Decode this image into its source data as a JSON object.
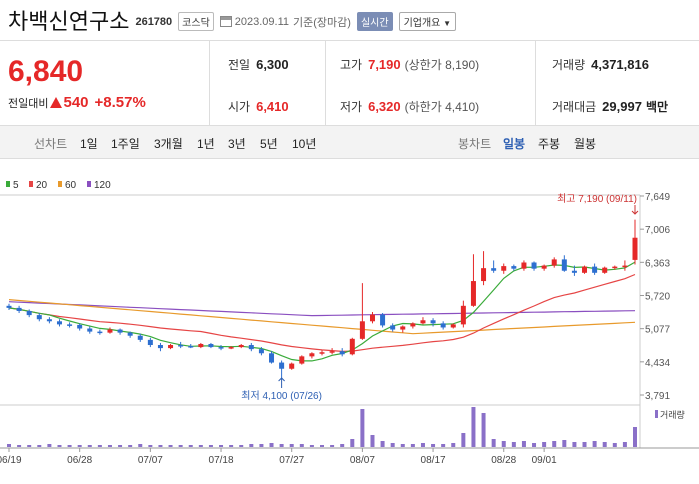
{
  "header": {
    "name": "차백신연구소",
    "code": "261780",
    "market": "코스닥",
    "date": "2023.09.11",
    "basis": "기준(장마감)",
    "realtime": "실시간",
    "company_info": "기업개요"
  },
  "quote": {
    "price": "6,840",
    "change_label": "전일대비",
    "change": "540",
    "change_pct": "+8.57%",
    "prev_label": "전일",
    "prev": "6,300",
    "high_label": "고가",
    "high": "7,190",
    "upper_limit": "(상한가 8,190)",
    "volume_label": "거래량",
    "volume": "4,371,816",
    "open_label": "시가",
    "open": "6,410",
    "low_label": "저가",
    "low": "6,320",
    "lower_limit": "(하한가 4,410)",
    "amount_label": "거래대금",
    "amount": "29,997",
    "amount_unit": "백만",
    "up_color": "#e52828",
    "down_color": "#2d6fd0"
  },
  "periods": {
    "line_label": "선차트",
    "line_items": [
      "1일",
      "1주일",
      "3개월",
      "1년",
      "3년",
      "5년",
      "10년"
    ],
    "candle_label": "봉차트",
    "candle_items": [
      "일봉",
      "주봉",
      "월봉"
    ],
    "selected": "일봉"
  },
  "chart_data": {
    "type": "candlestick",
    "legend": [
      {
        "name": "5",
        "color": "#3aab3a"
      },
      {
        "name": "20",
        "color": "#e64545"
      },
      {
        "name": "60",
        "color": "#e89a2c"
      },
      {
        "name": "120",
        "color": "#8a4fc0"
      }
    ],
    "y_ticks": [
      "7,649",
      "7,006",
      "6,363",
      "5,720",
      "5,077",
      "4,434",
      "3,791"
    ],
    "ylim": [
      3791,
      7649
    ],
    "x_ticks": [
      "06/19",
      "06/28",
      "07/07",
      "07/18",
      "07/27",
      "08/07",
      "08/17",
      "08/28",
      "09/01"
    ],
    "x_tick_index": [
      0,
      7,
      14,
      21,
      28,
      35,
      42,
      49,
      53
    ],
    "max_label": "최고  7,190 (09/11)",
    "min_label": "최저  4,100 (07/26)",
    "volume_label": "거래량",
    "candles": [
      [
        5520,
        5560,
        5440,
        5480
      ],
      [
        5480,
        5520,
        5380,
        5420
      ],
      [
        5420,
        5450,
        5300,
        5340
      ],
      [
        5340,
        5380,
        5220,
        5260
      ],
      [
        5260,
        5300,
        5180,
        5220
      ],
      [
        5220,
        5260,
        5120,
        5160
      ],
      [
        5160,
        5200,
        5100,
        5150
      ],
      [
        5150,
        5180,
        5040,
        5080
      ],
      [
        5080,
        5120,
        4980,
        5020
      ],
      [
        5020,
        5060,
        4960,
        5000
      ],
      [
        5000,
        5100,
        4980,
        5060
      ],
      [
        5060,
        5080,
        4960,
        5000
      ],
      [
        5000,
        5020,
        4900,
        4940
      ],
      [
        4940,
        4980,
        4820,
        4860
      ],
      [
        4860,
        4900,
        4720,
        4760
      ],
      [
        4760,
        4800,
        4640,
        4700
      ],
      [
        4700,
        4780,
        4680,
        4760
      ],
      [
        4760,
        4820,
        4700,
        4740
      ],
      [
        4740,
        4780,
        4700,
        4720
      ],
      [
        4720,
        4800,
        4700,
        4780
      ],
      [
        4780,
        4800,
        4700,
        4720
      ],
      [
        4720,
        4760,
        4660,
        4700
      ],
      [
        4700,
        4740,
        4680,
        4720
      ],
      [
        4720,
        4780,
        4700,
        4760
      ],
      [
        4760,
        4800,
        4640,
        4680
      ],
      [
        4680,
        4720,
        4560,
        4600
      ],
      [
        4600,
        4640,
        4400,
        4420
      ],
      [
        4420,
        4460,
        4100,
        4300
      ],
      [
        4300,
        4420,
        4280,
        4400
      ],
      [
        4400,
        4560,
        4380,
        4540
      ],
      [
        4540,
        4620,
        4500,
        4600
      ],
      [
        4600,
        4660,
        4560,
        4620
      ],
      [
        4620,
        4700,
        4580,
        4640
      ],
      [
        4640,
        4700,
        4540,
        4580
      ],
      [
        4580,
        4900,
        4560,
        4880
      ],
      [
        4880,
        5960,
        4860,
        5220
      ],
      [
        5220,
        5400,
        5180,
        5350
      ],
      [
        5350,
        5380,
        5100,
        5140
      ],
      [
        5140,
        5180,
        5020,
        5060
      ],
      [
        5060,
        5140,
        5000,
        5120
      ],
      [
        5120,
        5200,
        5080,
        5180
      ],
      [
        5180,
        5300,
        5160,
        5240
      ],
      [
        5240,
        5280,
        5120,
        5180
      ],
      [
        5180,
        5220,
        5060,
        5100
      ],
      [
        5100,
        5180,
        5080,
        5160
      ],
      [
        5160,
        5620,
        5100,
        5520
      ],
      [
        5520,
        6520,
        5500,
        6000
      ],
      [
        6000,
        6580,
        5920,
        6250
      ],
      [
        6250,
        6400,
        6160,
        6200
      ],
      [
        6200,
        6340,
        6140,
        6290
      ],
      [
        6290,
        6320,
        6200,
        6240
      ],
      [
        6240,
        6400,
        6200,
        6360
      ],
      [
        6360,
        6380,
        6200,
        6240
      ],
      [
        6240,
        6320,
        6200,
        6300
      ],
      [
        6300,
        6460,
        6260,
        6420
      ],
      [
        6420,
        6500,
        6180,
        6200
      ],
      [
        6200,
        6300,
        6100,
        6160
      ],
      [
        6160,
        6300,
        6140,
        6280
      ],
      [
        6280,
        6340,
        6120,
        6160
      ],
      [
        6160,
        6280,
        6140,
        6260
      ],
      [
        6260,
        6300,
        6220,
        6280
      ],
      [
        6280,
        6400,
        6200,
        6300
      ],
      [
        6410,
        7190,
        6320,
        6840
      ]
    ]
  }
}
